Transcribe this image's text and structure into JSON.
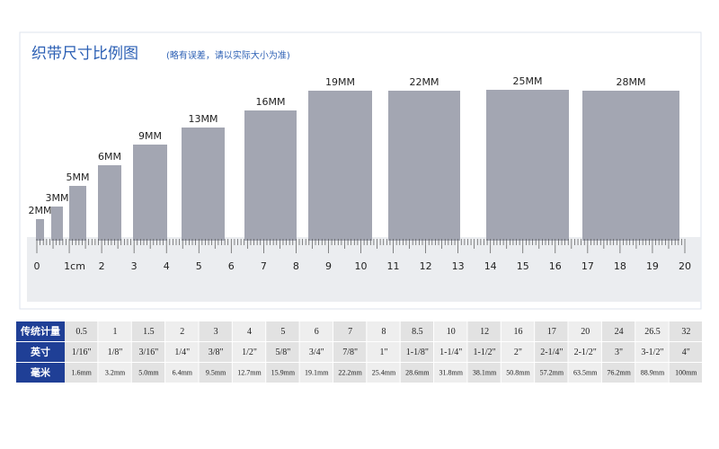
{
  "header": {
    "title": "织带尺寸比例图",
    "subtitle": "(略有误差，请以实际大小为准)"
  },
  "ribbons": [
    "2MM",
    "3MM",
    "5MM",
    "6MM",
    "9MM",
    "13MM",
    "16MM",
    "19MM",
    "22MM",
    "25MM",
    "28MM"
  ],
  "ruler": {
    "labels": [
      "0",
      "1cm",
      "2",
      "3",
      "4",
      "5",
      "6",
      "7",
      "8",
      "9",
      "10",
      "11",
      "12",
      "13",
      "14",
      "15",
      "16",
      "17",
      "18",
      "19",
      "20"
    ]
  },
  "table": {
    "rows": [
      {
        "label": "传统计量",
        "cells": [
          "0.5",
          "1",
          "1.5",
          "2",
          "3",
          "4",
          "5",
          "6",
          "7",
          "8",
          "8.5",
          "10",
          "12",
          "16",
          "17",
          "20",
          "24",
          "26.5",
          "32"
        ]
      },
      {
        "label": "英寸",
        "cells": [
          "1/16\"",
          "1/8\"",
          "3/16\"",
          "1/4\"",
          "3/8\"",
          "1/2\"",
          "5/8\"",
          "3/4\"",
          "7/8\"",
          "1\"",
          "1-1/8\"",
          "1-1/4\"",
          "1-1/2\"",
          "2\"",
          "2-1/4\"",
          "2-1/2\"",
          "3\"",
          "3-1/2\"",
          "4\""
        ]
      },
      {
        "label": "毫米",
        "cells": [
          "1.6mm",
          "3.2mm",
          "5.0mm",
          "6.4mm",
          "9.5mm",
          "12.7mm",
          "15.9mm",
          "19.1mm",
          "22.2mm",
          "25.4mm",
          "28.6mm",
          "31.8mm",
          "38.1mm",
          "50.8mm",
          "57.2mm",
          "63.5mm",
          "76.2mm",
          "88.9mm",
          "100mm"
        ]
      }
    ]
  }
}
